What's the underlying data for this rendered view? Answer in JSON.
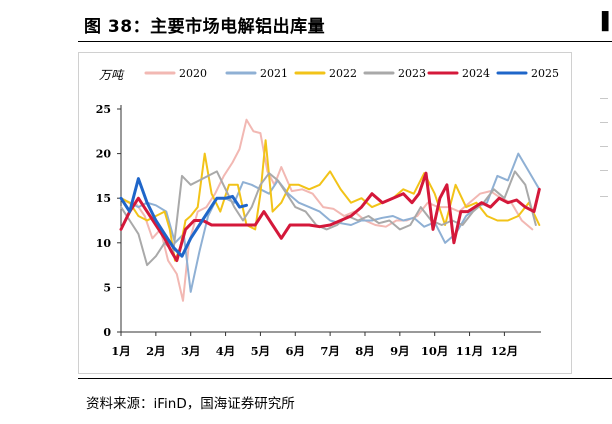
{
  "page": {
    "title": "图 38：主要市场电解铝出库量",
    "source": "资料来源：iFinD，国海证券研究所"
  },
  "chart_data": {
    "type": "line",
    "title": "图 38：主要市场电解铝出库量",
    "ylabel": "万吨",
    "xlabel": "",
    "ylim": [
      0,
      25
    ],
    "yticks": [
      0,
      5,
      10,
      15,
      20,
      25
    ],
    "categories": [
      "1月",
      "2月",
      "3月",
      "4月",
      "5月",
      "6月",
      "7月",
      "8月",
      "9月",
      "10月",
      "11月",
      "12月"
    ],
    "x_range": [
      1,
      13.05
    ],
    "legend_position": "top",
    "grid": false,
    "series": [
      {
        "name": "2020",
        "color": "#f2b8b3",
        "x": [
          1.0,
          1.22,
          1.45,
          1.68,
          1.9,
          2.13,
          2.35,
          2.6,
          2.78,
          2.95,
          3.2,
          3.45,
          3.7,
          3.95,
          4.2,
          4.4,
          4.6,
          4.8,
          5.0,
          5.2,
          5.4,
          5.6,
          5.9,
          6.2,
          6.5,
          6.8,
          7.1,
          7.4,
          7.7,
          8.0,
          8.3,
          8.6,
          8.9,
          9.2,
          9.5,
          9.8,
          10.1,
          10.4,
          10.7,
          11.0,
          11.3,
          11.6,
          11.9,
          12.2,
          12.5,
          12.8
        ],
        "y": [
          15.0,
          14.5,
          14.3,
          13.0,
          10.5,
          11.5,
          8.0,
          6.5,
          3.5,
          10.0,
          13.5,
          14.0,
          15.5,
          17.5,
          19.0,
          20.5,
          23.8,
          22.5,
          22.3,
          18.0,
          16.5,
          18.5,
          15.8,
          16.0,
          15.5,
          14.0,
          13.8,
          13.0,
          13.5,
          12.5,
          12.0,
          11.8,
          12.5,
          12.5,
          13.0,
          14.5,
          14.0,
          14.0,
          13.5,
          14.5,
          15.5,
          15.8,
          15.0,
          14.5,
          12.5,
          11.5
        ]
      },
      {
        "name": "2021",
        "color": "#8fb0d4",
        "x": [
          1.0,
          1.25,
          1.5,
          1.75,
          2.0,
          2.3,
          2.55,
          2.8,
          3.0,
          3.25,
          3.5,
          3.75,
          4.0,
          4.25,
          4.5,
          4.75,
          5.0,
          5.25,
          5.5,
          5.8,
          6.1,
          6.4,
          6.7,
          7.0,
          7.3,
          7.6,
          7.9,
          8.2,
          8.5,
          8.8,
          9.1,
          9.4,
          9.7,
          10.0,
          10.3,
          10.6,
          10.9,
          11.2,
          11.5,
          11.8,
          12.1,
          12.4,
          12.7,
          13.0
        ],
        "y": [
          15.0,
          14.5,
          14.0,
          14.5,
          14.2,
          13.5,
          10.0,
          11.0,
          4.5,
          9.0,
          13.0,
          15.0,
          15.0,
          14.5,
          16.8,
          16.5,
          16.0,
          15.5,
          17.0,
          15.5,
          14.5,
          14.0,
          13.5,
          12.5,
          12.2,
          12.0,
          12.5,
          12.5,
          12.8,
          13.0,
          12.5,
          12.8,
          11.8,
          12.3,
          10.0,
          11.0,
          13.0,
          14.0,
          14.5,
          17.5,
          17.0,
          20.0,
          18.0,
          16.0
        ]
      },
      {
        "name": "2022",
        "color": "#f2c318",
        "x": [
          1.0,
          1.25,
          1.5,
          1.75,
          2.0,
          2.25,
          2.4,
          2.55,
          2.7,
          2.85,
          3.0,
          3.2,
          3.4,
          3.6,
          3.85,
          4.1,
          4.35,
          4.6,
          4.85,
          5.0,
          5.15,
          5.35,
          5.6,
          5.85,
          6.1,
          6.4,
          6.7,
          7.0,
          7.3,
          7.6,
          7.9,
          8.2,
          8.5,
          8.8,
          9.1,
          9.4,
          9.7,
          10.0,
          10.3,
          10.6,
          10.9,
          11.2,
          11.5,
          11.8,
          12.1,
          12.4,
          12.7,
          13.0
        ],
        "y": [
          15.0,
          14.5,
          13.0,
          12.5,
          13.0,
          13.5,
          11.5,
          8.0,
          9.5,
          12.5,
          13.0,
          14.0,
          20.0,
          15.5,
          13.5,
          16.5,
          16.5,
          12.0,
          11.5,
          15.5,
          21.5,
          13.5,
          14.5,
          16.5,
          16.5,
          16.0,
          16.5,
          18.0,
          16.0,
          14.5,
          15.0,
          14.0,
          14.5,
          15.0,
          16.0,
          15.5,
          17.8,
          15.5,
          12.0,
          16.5,
          14.0,
          14.5,
          13.0,
          12.5,
          12.5,
          13.0,
          14.5,
          12.0
        ]
      },
      {
        "name": "2023",
        "color": "#a9a9a9",
        "x": [
          1.0,
          1.25,
          1.5,
          1.75,
          2.0,
          2.25,
          2.5,
          2.75,
          3.0,
          3.25,
          3.5,
          3.75,
          4.0,
          4.25,
          4.5,
          4.75,
          5.0,
          5.25,
          5.5,
          5.75,
          6.0,
          6.3,
          6.6,
          6.9,
          7.2,
          7.5,
          7.8,
          8.1,
          8.4,
          8.7,
          9.0,
          9.3,
          9.6,
          9.9,
          10.2,
          10.5,
          10.8,
          11.1,
          11.4,
          11.7,
          12.0,
          12.3,
          12.6,
          12.9
        ],
        "y": [
          14.0,
          12.5,
          11.0,
          7.5,
          8.5,
          10.0,
          9.0,
          17.5,
          16.5,
          17.0,
          17.5,
          18.0,
          16.0,
          14.0,
          12.5,
          14.0,
          16.5,
          17.8,
          17.0,
          15.5,
          14.0,
          13.5,
          12.0,
          11.5,
          12.0,
          13.0,
          12.5,
          13.0,
          12.2,
          12.5,
          11.5,
          12.0,
          14.0,
          12.5,
          12.0,
          12.5,
          12.0,
          13.5,
          14.5,
          16.0,
          15.0,
          18.0,
          16.5,
          12.0
        ]
      },
      {
        "name": "2024",
        "color": "#d4183a",
        "x": [
          1.0,
          1.25,
          1.5,
          1.75,
          2.0,
          2.25,
          2.45,
          2.6,
          2.85,
          3.1,
          3.35,
          3.6,
          3.85,
          4.1,
          4.35,
          4.6,
          4.85,
          5.1,
          5.35,
          5.6,
          5.85,
          6.1,
          6.4,
          6.7,
          7.0,
          7.3,
          7.6,
          7.9,
          8.2,
          8.5,
          8.8,
          9.1,
          9.35,
          9.55,
          9.75,
          9.95,
          10.15,
          10.35,
          10.55,
          10.75,
          10.95,
          11.15,
          11.35,
          11.6,
          11.85,
          12.1,
          12.35,
          12.6,
          12.85,
          13.0
        ],
        "y": [
          11.5,
          13.5,
          15.0,
          13.5,
          12.0,
          10.5,
          9.0,
          8.0,
          11.5,
          12.5,
          12.5,
          12.0,
          12.0,
          12.0,
          12.0,
          12.0,
          12.0,
          13.5,
          12.0,
          10.5,
          12.0,
          12.0,
          12.0,
          11.8,
          12.0,
          12.5,
          13.0,
          14.0,
          15.5,
          14.5,
          15.0,
          15.5,
          14.5,
          15.5,
          17.8,
          11.5,
          15.0,
          16.5,
          10.0,
          13.5,
          13.5,
          14.0,
          14.5,
          14.0,
          15.0,
          14.5,
          14.8,
          14.0,
          13.5,
          16.0
        ]
      },
      {
        "name": "2025",
        "color": "#1f66c9",
        "x": [
          1.0,
          1.25,
          1.5,
          1.75,
          2.0,
          2.25,
          2.5,
          2.75,
          3.0,
          3.25,
          3.5,
          3.75,
          4.0,
          4.2,
          4.4,
          4.6
        ],
        "y": [
          15.0,
          13.5,
          17.2,
          14.5,
          12.5,
          11.0,
          9.5,
          8.5,
          10.5,
          12.0,
          13.5,
          15.0,
          15.0,
          15.2,
          14.0,
          14.2
        ]
      }
    ]
  }
}
